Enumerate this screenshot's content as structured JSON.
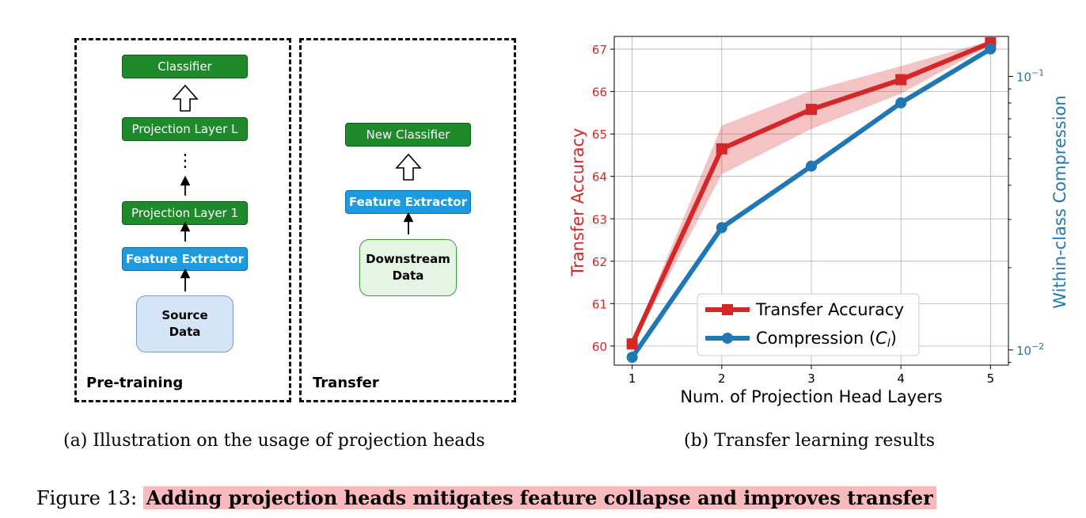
{
  "diagram": {
    "pretraining": {
      "label": "Pre-training",
      "classifier": "Classifier",
      "proj_l": "Projection Layer L",
      "dots": "⋮",
      "proj_1": "Projection Layer 1",
      "feature": "Feature Extractor",
      "data_line1": "Source",
      "data_line2": "Data"
    },
    "transfer": {
      "label": "Transfer",
      "classifier": "New Classifier",
      "feature": "Feature Extractor",
      "data_line1": "Downstream",
      "data_line2": "Data"
    },
    "colors": {
      "green": "#1f8a2b",
      "blue": "#1c9be0"
    }
  },
  "captions": {
    "a": "(a) Illustration on the usage of projection heads",
    "b": "(b) Transfer learning results",
    "figure_prefix": "Figure 13:",
    "figure_text": "Adding projection heads mitigates feature collapse and improves transfer"
  },
  "chart_data": {
    "type": "line",
    "xlabel": "Num. of Projection Head Layers",
    "ylabel_left": "Transfer Accuracy",
    "ylabel_right": "Within-class Compression",
    "x": [
      1,
      2,
      3,
      4,
      5
    ],
    "x_ticks": [
      "1",
      "2",
      "3",
      "4",
      "5"
    ],
    "ylim_left": [
      59.55,
      67.3
    ],
    "y_ticks_left": [
      "60",
      "61",
      "62",
      "63",
      "64",
      "65",
      "66",
      "67"
    ],
    "y_scale_right": "log",
    "ylim_right": [
      0.0088,
      0.14
    ],
    "y_ticks_right": [
      {
        "value": 0.1,
        "base": "10",
        "exp": "−1"
      },
      {
        "value": 0.01,
        "base": "10",
        "exp": "−2"
      }
    ],
    "grid": true,
    "legend_position": "lower-right",
    "series": [
      {
        "name": "Transfer Accuracy",
        "axis": "left",
        "color": "#d62728",
        "marker": "square",
        "values": [
          60.05,
          64.65,
          65.58,
          66.28,
          67.15
        ],
        "band_low": [
          60.0,
          64.05,
          65.12,
          65.95,
          67.1
        ],
        "band_high": [
          60.1,
          65.2,
          66.02,
          66.6,
          67.2
        ]
      },
      {
        "name": "Compression (",
        "name_sub_var": "C",
        "name_sub": "l",
        "name_close": ")",
        "axis": "right",
        "color": "#1f77b4",
        "marker": "circle",
        "values": [
          0.0094,
          0.028,
          0.047,
          0.08,
          0.126
        ]
      }
    ]
  }
}
